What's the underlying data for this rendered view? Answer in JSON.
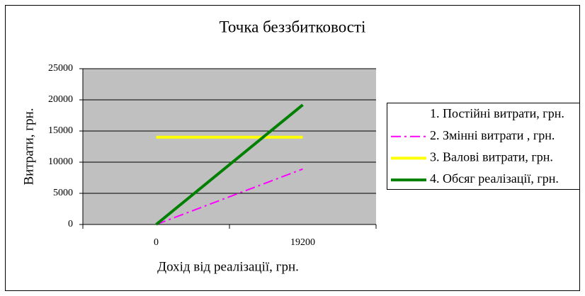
{
  "chart_data": {
    "type": "line",
    "title": "Точка беззбитковості",
    "x_label": "Дохід від реалізації, грн.",
    "y_label": "Витрати, грн.",
    "categories": [
      "0",
      "19200"
    ],
    "series": [
      {
        "name": "1. Постійні витрати, грн.",
        "color": "#ffffff",
        "values": [
          14000,
          14000
        ]
      },
      {
        "name": "2. Змінні витрати , грн.",
        "color": "#ff00ff",
        "values": [
          0,
          8900
        ]
      },
      {
        "name": "3. Валові витрати, грн.",
        "color": "#ffff00",
        "values": [
          14000,
          14000
        ]
      },
      {
        "name": "4. Обсяг реалізації, грн.",
        "color": "#008000",
        "values": [
          0,
          19200
        ]
      }
    ],
    "ylim": [
      0,
      25000
    ],
    "yticks": [
      0,
      5000,
      10000,
      15000,
      20000,
      25000
    ],
    "grid": true,
    "legend": "right"
  }
}
